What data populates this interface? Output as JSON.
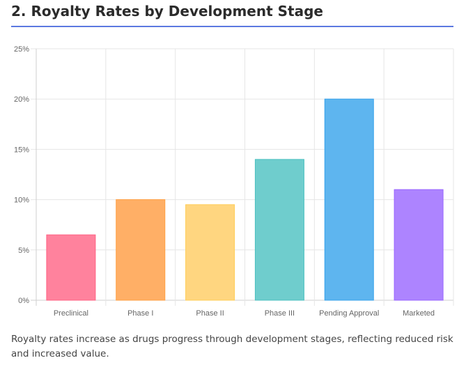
{
  "section": {
    "title": "2. Royalty Rates by Development Stage",
    "caption": "Royalty rates increase as drugs progress through development stages, reflecting reduced risk and increased value."
  },
  "chart_data": {
    "type": "bar",
    "title": "",
    "xlabel": "",
    "ylabel": "",
    "ylim": [
      0,
      25
    ],
    "yticks": [
      0,
      5,
      10,
      15,
      20,
      25
    ],
    "ytick_suffix": "%",
    "grid": true,
    "legend": "none",
    "categories": [
      "Preclinical",
      "Phase I",
      "Phase II",
      "Phase III",
      "Pending Approval",
      "Marketed"
    ],
    "values": [
      6.5,
      10,
      9.5,
      14,
      20,
      11
    ],
    "fill_colors": [
      "#ff829d",
      "#ffaf66",
      "#ffd680",
      "#6fcdcd",
      "#5eb5ef",
      "#ad84ff"
    ],
    "stroke_colors": [
      "#ff6384",
      "#ff9f40",
      "#ffcd56",
      "#4bc0c0",
      "#36a2eb",
      "#9966ff"
    ]
  }
}
